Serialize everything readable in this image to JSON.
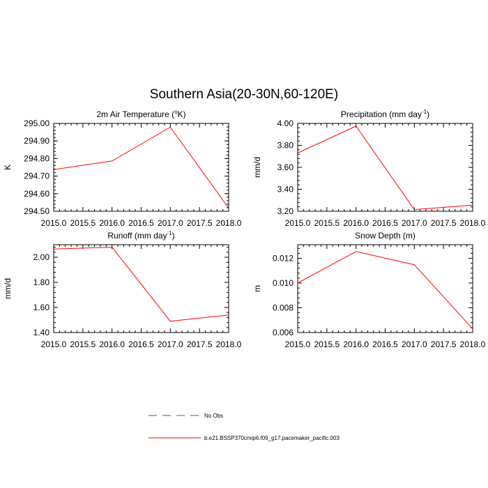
{
  "page_title": "Southern Asia(20-30N,60-120E)",
  "legend": {
    "entries": [
      {
        "label": "No Obs",
        "color": "#4444ff",
        "style": "dashed"
      },
      {
        "label": "b.e21.BSSP370cmip6.f09_g17.pacemaker_pacific.003",
        "color": "#ff0000",
        "style": "solid"
      }
    ]
  },
  "chart_data": [
    {
      "type": "line",
      "title_parts": [
        "2m Air Temperature (",
        "o",
        "K)"
      ],
      "ylabel": "K",
      "x": [
        2015,
        2016,
        2017,
        2018
      ],
      "xlim": [
        2015,
        2018
      ],
      "xticks": [
        "2015.0",
        "2015.5",
        "2016.0",
        "2016.5",
        "2017.0",
        "2017.5",
        "2018.0"
      ],
      "ylim": [
        294.5,
        295.0
      ],
      "yticks": [
        {
          "v": 294.5,
          "label": "294.50"
        },
        {
          "v": 294.6,
          "label": "294.60"
        },
        {
          "v": 294.7,
          "label": "294.70"
        },
        {
          "v": 294.8,
          "label": "294.80"
        },
        {
          "v": 294.9,
          "label": "294.90"
        },
        {
          "v": 295.0,
          "label": "295.00"
        }
      ],
      "series": [
        {
          "name": "b.e21.BSSP370cmip6.f09_g17.pacemaker_pacific.003",
          "color": "#ff0000",
          "values": [
            294.737,
            294.786,
            294.978,
            294.518
          ]
        }
      ]
    },
    {
      "type": "line",
      "title_parts": [
        "Precipitation (mm day",
        "-1",
        ")"
      ],
      "ylabel": "mm/d",
      "x": [
        2015,
        2016,
        2017,
        2018
      ],
      "xlim": [
        2015,
        2018
      ],
      "xticks": [
        "2015.0",
        "2015.5",
        "2016.0",
        "2016.5",
        "2017.0",
        "2017.5",
        "2018.0"
      ],
      "ylim": [
        3.2,
        4.0
      ],
      "yticks": [
        {
          "v": 3.2,
          "label": "3.20"
        },
        {
          "v": 3.4,
          "label": "3.40"
        },
        {
          "v": 3.6,
          "label": "3.60"
        },
        {
          "v": 3.8,
          "label": "3.80"
        },
        {
          "v": 4.0,
          "label": "4.00"
        }
      ],
      "series": [
        {
          "name": "b.e21.BSSP370cmip6.f09_g17.pacemaker_pacific.003",
          "color": "#ff0000",
          "values": [
            3.73,
            3.975,
            3.215,
            3.255
          ]
        }
      ]
    },
    {
      "type": "line",
      "title_parts": [
        "Runoff (mm day",
        "-1",
        ")"
      ],
      "ylabel": "mm/d",
      "x": [
        2015,
        2016,
        2017,
        2018
      ],
      "xlim": [
        2015,
        2018
      ],
      "xticks": [
        "2015.0",
        "2015.5",
        "2016.0",
        "2016.5",
        "2017.0",
        "2017.5",
        "2018.0"
      ],
      "ylim": [
        1.4,
        2.1
      ],
      "yticks": [
        {
          "v": 1.4,
          "label": "1.40"
        },
        {
          "v": 1.6,
          "label": "1.60"
        },
        {
          "v": 1.8,
          "label": "1.80"
        },
        {
          "v": 2.0,
          "label": "2.00"
        }
      ],
      "series": [
        {
          "name": "b.e21.BSSP370cmip6.f09_g17.pacemaker_pacific.003",
          "color": "#ff0000",
          "values": [
            2.065,
            2.08,
            1.49,
            1.54
          ]
        }
      ]
    },
    {
      "type": "line",
      "title_parts": [
        "Snow Depth (m)"
      ],
      "ylabel": "m",
      "x": [
        2015,
        2016,
        2017,
        2018
      ],
      "xlim": [
        2015,
        2018
      ],
      "xticks": [
        "2015.0",
        "2015.5",
        "2016.0",
        "2016.5",
        "2017.0",
        "2017.5",
        "2018.0"
      ],
      "ylim": [
        0.006,
        0.0131
      ],
      "yticks": [
        {
          "v": 0.006,
          "label": "0.006"
        },
        {
          "v": 0.008,
          "label": "0.008"
        },
        {
          "v": 0.01,
          "label": "0.010"
        },
        {
          "v": 0.012,
          "label": "0.012"
        }
      ],
      "series": [
        {
          "name": "b.e21.BSSP370cmip6.f09_g17.pacemaker_pacific.003",
          "color": "#ff0000",
          "values": [
            0.01,
            0.01255,
            0.01148,
            0.0063
          ]
        }
      ]
    }
  ]
}
